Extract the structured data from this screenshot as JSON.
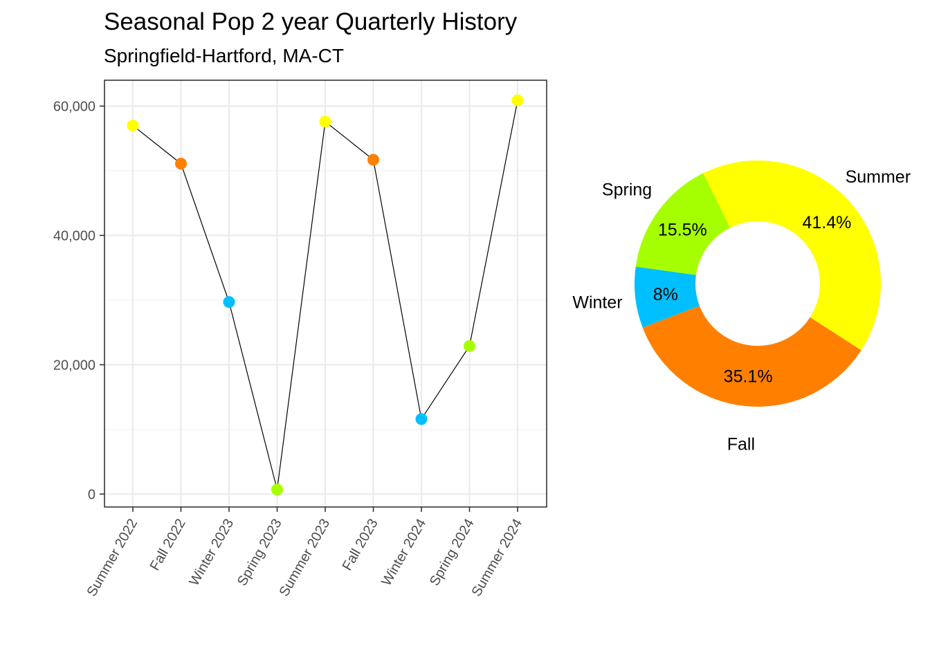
{
  "title": "Seasonal Pop 2 year Quarterly History",
  "subtitle": "Springfield-Hartford, MA-CT",
  "season_colors": {
    "Summer": "#FFFF00",
    "Fall": "#FF8000",
    "Winter": "#00BFFF",
    "Spring": "#A6FF00"
  },
  "chart_data": [
    {
      "type": "line",
      "categories": [
        "Summer 2022",
        "Fall 2022",
        "Winter 2023",
        "Spring 2023",
        "Summer 2023",
        "Fall 2023",
        "Winter 2024",
        "Spring 2024",
        "Summer 2024"
      ],
      "seasons": [
        "Summer",
        "Fall",
        "Winter",
        "Spring",
        "Summer",
        "Fall",
        "Winter",
        "Spring",
        "Summer"
      ],
      "values": [
        57000,
        51100,
        29700,
        700,
        57600,
        51700,
        11600,
        22900,
        60900
      ],
      "ylim": [
        -2000,
        64000
      ],
      "yticks": [
        0,
        20000,
        40000,
        60000
      ],
      "ytick_labels": [
        "0",
        "20,000",
        "40,000",
        "60,000"
      ],
      "grid": true,
      "xlabel": "",
      "ylabel": ""
    },
    {
      "type": "pie",
      "donut": true,
      "slices": [
        {
          "label": "Summer",
          "value": 41.4,
          "pct_label": "41.4%"
        },
        {
          "label": "Fall",
          "value": 35.1,
          "pct_label": "35.1%"
        },
        {
          "label": "Winter",
          "value": 8.0,
          "pct_label": "8%"
        },
        {
          "label": "Spring",
          "value": 15.5,
          "pct_label": "15.5%"
        }
      ]
    }
  ]
}
